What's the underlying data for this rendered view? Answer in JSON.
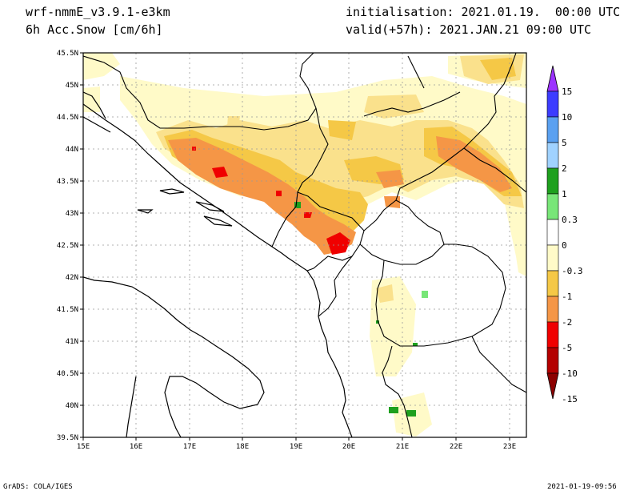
{
  "header": {
    "model": "wrf-nmmE_v3.9.1-e3km",
    "field": "6h Acc.Snow [cm/6h]",
    "init": "initialisation: 2021.01.19.  00:00 UTC",
    "valid": "valid(+57h): 2021.JAN.21 09:00 UTC"
  },
  "footer": {
    "left": "GrADS: COLA/IGES",
    "right": "2021-01-19-09:56"
  },
  "axes": {
    "lon_labels": [
      "15E",
      "16E",
      "17E",
      "18E",
      "19E",
      "20E",
      "21E",
      "22E",
      "23E"
    ],
    "lat_labels": [
      "45.5N",
      "45N",
      "44.5N",
      "44N",
      "43.5N",
      "43N",
      "42.5N",
      "42N",
      "41.5N",
      "41N",
      "40.5N",
      "40N",
      "39.5N"
    ]
  },
  "legend": {
    "labels": [
      "15",
      "10",
      "5",
      "2",
      "1",
      "0.3",
      "0",
      "-0.3",
      "-1",
      "-2",
      "-5",
      "-10",
      "-15"
    ],
    "colors": [
      "#9c33ff",
      "#3c3cff",
      "#5aa0f0",
      "#a0d2ff",
      "#1ea01e",
      "#78e678",
      "#ffffff",
      "#fffac8",
      "#f5c846",
      "#f59646",
      "#f00000",
      "#b40000",
      "#8c0000"
    ]
  },
  "colors": {
    "snow_light": "#fffac8",
    "snow_1": "#fae18c",
    "snow_2": "#f5c846",
    "snow_3": "#f59646",
    "snow_5": "#f00000",
    "green": "#1ea01e"
  }
}
